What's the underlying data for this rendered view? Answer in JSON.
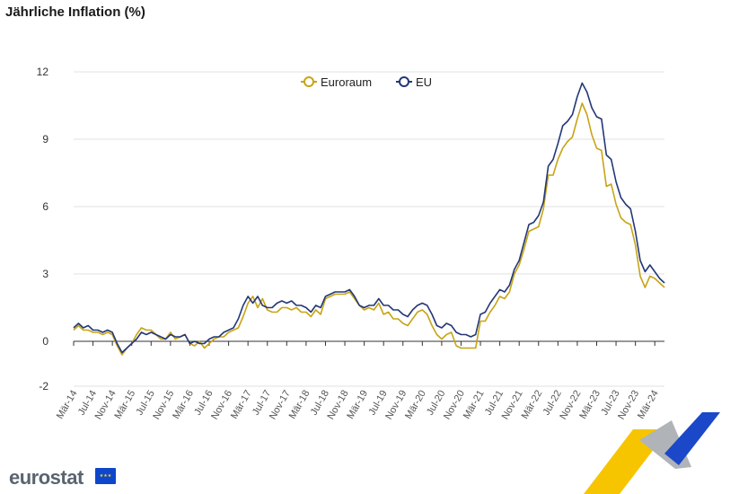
{
  "title": "Jährliche Inflation (%)",
  "brand": {
    "name": "eurostat"
  },
  "chart_data": {
    "type": "line",
    "title": "Jährliche Inflation (%)",
    "ylim": [
      -2,
      12
    ],
    "yticks": [
      -2,
      0,
      3,
      6,
      9,
      12
    ],
    "grid": true,
    "legend_position": "top-center",
    "x_tick_labels": [
      "Mär-14",
      "Jul-14",
      "Nov-14",
      "Mär-15",
      "Jul-15",
      "Nov-15",
      "Mär-16",
      "Jul-16",
      "Nov-16",
      "Mär-17",
      "Jul-17",
      "Nov-17",
      "Mär-18",
      "Jul-18",
      "Nov-18",
      "Mär-19",
      "Jul-19",
      "Nov-19",
      "Mär-20",
      "Jul-20",
      "Nov-20",
      "Mär-21",
      "Jul-21",
      "Nov-21",
      "Mär-22",
      "Jul-22",
      "Nov-22",
      "Mär-23",
      "Jul-23",
      "Nov-23",
      "Mär-24"
    ],
    "series": [
      {
        "name": "Euroraum",
        "color": "#c8a415",
        "values": [
          0.5,
          0.7,
          0.5,
          0.5,
          0.4,
          0.4,
          0.3,
          0.4,
          0.3,
          -0.2,
          -0.6,
          -0.3,
          -0.1,
          0.3,
          0.6,
          0.5,
          0.5,
          0.3,
          0.1,
          0.1,
          0.4,
          0.1,
          0.2,
          0.3,
          -0.1,
          -0.2,
          0.0,
          -0.3,
          -0.1,
          0.1,
          0.2,
          0.2,
          0.4,
          0.5,
          0.6,
          1.1,
          1.7,
          2.0,
          1.5,
          1.9,
          1.4,
          1.3,
          1.3,
          1.5,
          1.5,
          1.4,
          1.5,
          1.3,
          1.3,
          1.1,
          1.4,
          1.2,
          1.9,
          2.0,
          2.1,
          2.1,
          2.1,
          2.2,
          1.9,
          1.6,
          1.4,
          1.5,
          1.4,
          1.7,
          1.2,
          1.3,
          1.0,
          1.0,
          0.8,
          0.7,
          1.0,
          1.3,
          1.4,
          1.2,
          0.7,
          0.3,
          0.1,
          0.3,
          0.4,
          -0.2,
          -0.3,
          -0.3,
          -0.3,
          -0.3,
          0.9,
          0.9,
          1.3,
          1.6,
          2.0,
          1.9,
          2.2,
          3.0,
          3.4,
          4.1,
          4.9,
          5.0,
          5.1,
          5.9,
          7.4,
          7.4,
          8.1,
          8.6,
          8.9,
          9.1,
          9.9,
          10.6,
          10.1,
          9.2,
          8.6,
          8.5,
          6.9,
          7.0,
          6.1,
          5.5,
          5.3,
          5.2,
          4.3,
          2.9,
          2.4,
          2.9,
          2.8,
          2.6,
          2.4
        ]
      },
      {
        "name": "EU",
        "color": "#233876",
        "values": [
          0.6,
          0.8,
          0.6,
          0.7,
          0.5,
          0.5,
          0.4,
          0.5,
          0.4,
          -0.1,
          -0.5,
          -0.3,
          -0.1,
          0.1,
          0.4,
          0.3,
          0.4,
          0.3,
          0.2,
          0.1,
          0.3,
          0.2,
          0.2,
          0.3,
          -0.1,
          0.0,
          -0.1,
          -0.1,
          0.1,
          0.2,
          0.2,
          0.4,
          0.5,
          0.6,
          1.0,
          1.6,
          2.0,
          1.7,
          2.0,
          1.6,
          1.5,
          1.5,
          1.7,
          1.8,
          1.7,
          1.8,
          1.6,
          1.6,
          1.5,
          1.3,
          1.6,
          1.5,
          2.0,
          2.1,
          2.2,
          2.2,
          2.2,
          2.3,
          2.0,
          1.6,
          1.5,
          1.6,
          1.6,
          1.9,
          1.6,
          1.6,
          1.4,
          1.4,
          1.2,
          1.1,
          1.4,
          1.6,
          1.7,
          1.6,
          1.2,
          0.7,
          0.6,
          0.8,
          0.7,
          0.4,
          0.3,
          0.3,
          0.2,
          0.3,
          1.2,
          1.3,
          1.7,
          2.0,
          2.3,
          2.2,
          2.5,
          3.2,
          3.6,
          4.4,
          5.2,
          5.3,
          5.6,
          6.2,
          7.8,
          8.1,
          8.8,
          9.6,
          9.8,
          10.1,
          10.9,
          11.5,
          11.1,
          10.4,
          10.0,
          9.9,
          8.3,
          8.1,
          7.1,
          6.4,
          6.1,
          5.9,
          4.9,
          3.6,
          3.1,
          3.4,
          3.1,
          2.8,
          2.6
        ]
      }
    ]
  }
}
